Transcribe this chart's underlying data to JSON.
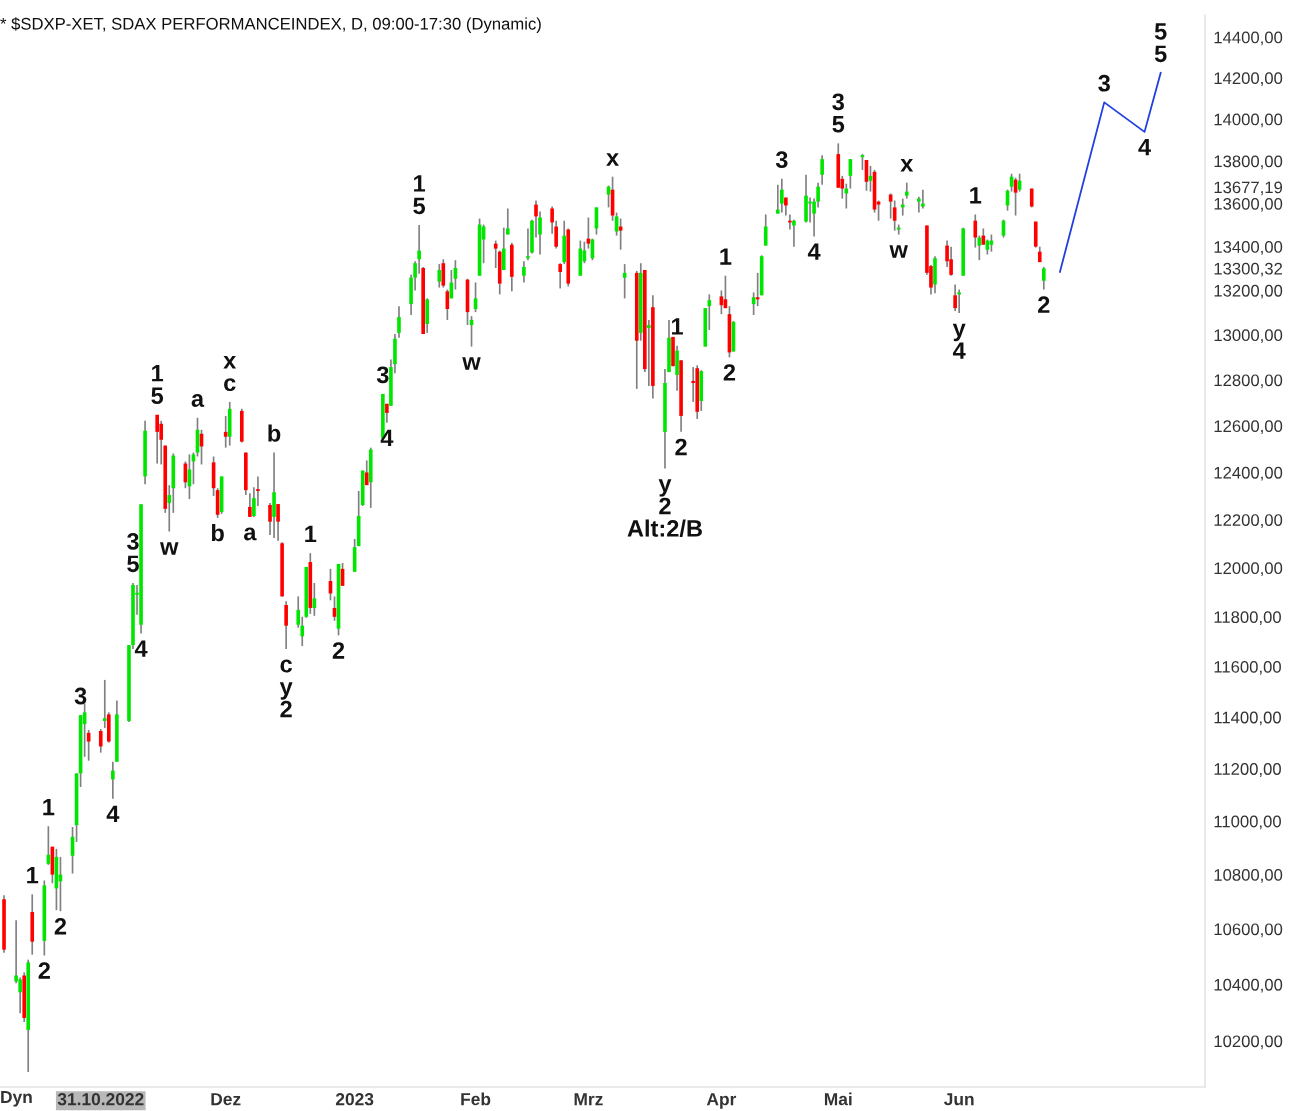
{
  "chart_data": {
    "type": "candlestick",
    "title": "* $SDXP-XET, SDAX PERFORMANCEINDEX, D, 09:00-17:30 (Dynamic)",
    "x": [
      "2022-10-07",
      "2022-10-10",
      "2022-10-11",
      "2022-10-12",
      "2022-10-13",
      "2022-10-14",
      "2022-10-17",
      "2022-10-18",
      "2022-10-19",
      "2022-10-20",
      "2022-10-21",
      "2022-10-24",
      "2022-10-25",
      "2022-10-26",
      "2022-10-27",
      "2022-10-28",
      "2022-10-31",
      "2022-11-01",
      "2022-11-02",
      "2022-11-03",
      "2022-11-04",
      "2022-11-07",
      "2022-11-08",
      "2022-11-09",
      "2022-11-10",
      "2022-11-11",
      "2022-11-14",
      "2022-11-15",
      "2022-11-16",
      "2022-11-17",
      "2022-11-18",
      "2022-11-21",
      "2022-11-22",
      "2022-11-23",
      "2022-11-24",
      "2022-11-25",
      "2022-11-28",
      "2022-11-29",
      "2022-11-30",
      "2022-12-01",
      "2022-12-02",
      "2022-12-05",
      "2022-12-06",
      "2022-12-07",
      "2022-12-08",
      "2022-12-09",
      "2022-12-12",
      "2022-12-13",
      "2022-12-14",
      "2022-12-15",
      "2022-12-16",
      "2022-12-19",
      "2022-12-20",
      "2022-12-21",
      "2022-12-22",
      "2022-12-23",
      "2022-12-27",
      "2022-12-28",
      "2022-12-29",
      "2022-12-30",
      "2023-01-02",
      "2023-01-03",
      "2023-01-04",
      "2023-01-05",
      "2023-01-06",
      "2023-01-09",
      "2023-01-10",
      "2023-01-11",
      "2023-01-12",
      "2023-01-13",
      "2023-01-16",
      "2023-01-17",
      "2023-01-18",
      "2023-01-19",
      "2023-01-20",
      "2023-01-23",
      "2023-01-24",
      "2023-01-25",
      "2023-01-26",
      "2023-01-27",
      "2023-01-30",
      "2023-01-31",
      "2023-02-01",
      "2023-02-02",
      "2023-02-03",
      "2023-02-06",
      "2023-02-07",
      "2023-02-08",
      "2023-02-09",
      "2023-02-10",
      "2023-02-13",
      "2023-02-14",
      "2023-02-15",
      "2023-02-16",
      "2023-02-17",
      "2023-02-20",
      "2023-02-21",
      "2023-02-22",
      "2023-02-23",
      "2023-02-24",
      "2023-02-27",
      "2023-02-28",
      "2023-03-01",
      "2023-03-02",
      "2023-03-03",
      "2023-03-06",
      "2023-03-07",
      "2023-03-08",
      "2023-03-09",
      "2023-03-10",
      "2023-03-13",
      "2023-03-14",
      "2023-03-15",
      "2023-03-16",
      "2023-03-17",
      "2023-03-20",
      "2023-03-21",
      "2023-03-22",
      "2023-03-23",
      "2023-03-24",
      "2023-03-27",
      "2023-03-28",
      "2023-03-29",
      "2023-03-30",
      "2023-03-31",
      "2023-04-03",
      "2023-04-04",
      "2023-04-05",
      "2023-04-06",
      "2023-04-11",
      "2023-04-12",
      "2023-04-13",
      "2023-04-14",
      "2023-04-17",
      "2023-04-18",
      "2023-04-19",
      "2023-04-20",
      "2023-04-21",
      "2023-04-24",
      "2023-04-25",
      "2023-04-26",
      "2023-04-27",
      "2023-04-28",
      "2023-05-02",
      "2023-05-03",
      "2023-05-04",
      "2023-05-05",
      "2023-05-08",
      "2023-05-09",
      "2023-05-10",
      "2023-05-11",
      "2023-05-12",
      "2023-05-15",
      "2023-05-16",
      "2023-05-17",
      "2023-05-18",
      "2023-05-19",
      "2023-05-22",
      "2023-05-23",
      "2023-05-24",
      "2023-05-25",
      "2023-05-26",
      "2023-05-29",
      "2023-05-30",
      "2023-05-31",
      "2023-06-01",
      "2023-06-02",
      "2023-06-05",
      "2023-06-06",
      "2023-06-07",
      "2023-06-08",
      "2023-06-09",
      "2023-06-12",
      "2023-06-13",
      "2023-06-14",
      "2023-06-15",
      "2023-06-16",
      "2023-06-19",
      "2023-06-20",
      "2023-06-21",
      "2023-06-22"
    ],
    "ohlc": [
      [
        10709,
        10724,
        10514,
        10525
      ],
      [
        10411,
        10632,
        10404,
        10432
      ],
      [
        10372,
        10425,
        10298,
        10418
      ],
      [
        10432,
        10443,
        10267,
        10281
      ],
      [
        10239,
        10489,
        10092,
        10479
      ],
      [
        10662,
        10727,
        10507,
        10554
      ],
      [
        10557,
        10778,
        10504,
        10760
      ],
      [
        10840,
        10981,
        10836,
        10874
      ],
      [
        10904,
        10904,
        10768,
        10800
      ],
      [
        10749,
        10896,
        10669,
        10866
      ],
      [
        10775,
        10866,
        10665,
        10800
      ],
      [
        10870,
        10978,
        10804,
        10941
      ],
      [
        10985,
        11182,
        10922,
        11182
      ],
      [
        11182,
        11408,
        11130,
        11408
      ],
      [
        11373,
        11454,
        11246,
        11419
      ],
      [
        11339,
        11350,
        11231,
        11305
      ],
      [
        11346,
        11354,
        11262,
        11286
      ],
      [
        11385,
        11547,
        11358,
        11396
      ],
      [
        11411,
        11419,
        11301,
        11305
      ],
      [
        11159,
        11227,
        11085,
        11193
      ],
      [
        11227,
        11466,
        11227,
        11411
      ],
      [
        11385,
        11686,
        11381,
        11686
      ],
      [
        11686,
        11938,
        11670,
        11930
      ],
      [
        11890,
        11930,
        11808,
        11898
      ],
      [
        11768,
        12265,
        11733,
        12265
      ],
      [
        12383,
        12622,
        12350,
        12579
      ],
      [
        12648,
        12648,
        12438,
        12574
      ],
      [
        12609,
        12622,
        12434,
        12540
      ],
      [
        12515,
        12515,
        12229,
        12246
      ],
      [
        12270,
        12346,
        12151,
        12304
      ],
      [
        12333,
        12481,
        12229,
        12472
      ],
      [
        12438,
        12447,
        12333,
        12358
      ],
      [
        12341,
        12477,
        12287,
        12413
      ],
      [
        12447,
        12485,
        12350,
        12477
      ],
      [
        12485,
        12635,
        12468,
        12583
      ],
      [
        12566,
        12583,
        12434,
        12511
      ],
      [
        12443,
        12468,
        12300,
        12333
      ],
      [
        12325,
        12333,
        12208,
        12221
      ],
      [
        12233,
        12383,
        12225,
        12383
      ],
      [
        12574,
        12643,
        12506,
        12553
      ],
      [
        12553,
        12704,
        12515,
        12674
      ],
      [
        12665,
        12674,
        12528,
        12532
      ],
      [
        12485,
        12485,
        12304,
        12325
      ],
      [
        12254,
        12312,
        12212,
        12212
      ],
      [
        12216,
        12337,
        12212,
        12291
      ],
      [
        12329,
        12383,
        12258,
        12321
      ],
      [
        12262,
        12271,
        12136,
        12192
      ],
      [
        12212,
        12485,
        12124,
        12316
      ],
      [
        12266,
        12266,
        12112,
        12192
      ],
      [
        12102,
        12106,
        11883,
        11883
      ],
      [
        11848,
        11863,
        11670,
        11764
      ],
      [
        11768,
        11883,
        11756,
        11828
      ],
      [
        11721,
        11800,
        11682,
        11764
      ],
      [
        11800,
        12004,
        11796,
        12004
      ],
      [
        12024,
        12061,
        11812,
        11836
      ],
      [
        11836,
        11938,
        11804,
        11875
      ],
      [
        11946,
        11996,
        11867,
        11895
      ],
      [
        11836,
        11883,
        11784,
        11800
      ],
      [
        11752,
        12016,
        11725,
        12016
      ],
      [
        11996,
        12020,
        11926,
        11926
      ],
      [
        11984,
        12120,
        11984,
        12086
      ],
      [
        12090,
        12321,
        12090,
        12216
      ],
      [
        12262,
        12408,
        12258,
        12408
      ],
      [
        12400,
        12451,
        12346,
        12346
      ],
      [
        12358,
        12506,
        12250,
        12498
      ],
      [
        12545,
        12739,
        12540,
        12739
      ],
      [
        12696,
        12696,
        12613,
        12656
      ],
      [
        12687,
        12891,
        12687,
        12857
      ],
      [
        12870,
        13004,
        12830,
        12983
      ],
      [
        13009,
        13129,
        12987,
        13080
      ],
      [
        13138,
        13271,
        13089,
        13258
      ],
      [
        13258,
        13333,
        13200,
        13324
      ],
      [
        13342,
        13500,
        13276,
        13382
      ],
      [
        13302,
        13307,
        13004,
        13004
      ],
      [
        13049,
        13164,
        13009,
        13160
      ],
      [
        13240,
        13320,
        13213,
        13293
      ],
      [
        13324,
        13342,
        13213,
        13222
      ],
      [
        13196,
        13204,
        13067,
        13116
      ],
      [
        13164,
        13293,
        13164,
        13236
      ],
      [
        13253,
        13338,
        13204,
        13302
      ],
      [
        13249,
        13253,
        13044,
        13102
      ],
      [
        13044,
        13084,
        12948,
        13067
      ],
      [
        13116,
        13236,
        13102,
        13164
      ],
      [
        13267,
        13530,
        13267,
        13502
      ],
      [
        13433,
        13502,
        13324,
        13493
      ],
      [
        13414,
        13428,
        13302,
        13391
      ],
      [
        13377,
        13382,
        13182,
        13231
      ],
      [
        13293,
        13488,
        13293,
        13391
      ],
      [
        13456,
        13577,
        13456,
        13484
      ],
      [
        13409,
        13418,
        13196,
        13262
      ],
      [
        13267,
        13333,
        13236,
        13307
      ],
      [
        13347,
        13484,
        13338,
        13356
      ],
      [
        13373,
        13525,
        13369,
        13520
      ],
      [
        13595,
        13614,
        13442,
        13540
      ],
      [
        13456,
        13563,
        13364,
        13535
      ],
      [
        13577,
        13586,
        13460,
        13512
      ],
      [
        13493,
        13520,
        13391,
        13400
      ],
      [
        13320,
        13324,
        13209,
        13284
      ],
      [
        13329,
        13520,
        13320,
        13451
      ],
      [
        13479,
        13484,
        13218,
        13231
      ],
      [
        13267,
        13428,
        13267,
        13391
      ],
      [
        13333,
        13423,
        13324,
        13382
      ],
      [
        13437,
        13535,
        13391,
        13414
      ],
      [
        13347,
        13437,
        13338,
        13433
      ],
      [
        13484,
        13582,
        13456,
        13582
      ],
      [
        13642,
        13684,
        13582,
        13679
      ],
      [
        13665,
        13726,
        13520,
        13544
      ],
      [
        13470,
        13558,
        13451,
        13540
      ],
      [
        13493,
        13530,
        13386,
        13474
      ],
      [
        13258,
        13320,
        13164,
        13280
      ],
      [
        13280,
        13289,
        12761,
        12974
      ],
      [
        13009,
        13324,
        12974,
        13280
      ],
      [
        13293,
        13293,
        12835,
        12848
      ],
      [
        13031,
        13067,
        12774,
        13044
      ],
      [
        13124,
        13178,
        12719,
        12774
      ],
      [
        12574,
        12848,
        12417,
        12787
      ],
      [
        12835,
        13067,
        12835,
        12987
      ],
      [
        12991,
        12991,
        12861,
        12861
      ],
      [
        12822,
        12952,
        12753,
        12930
      ],
      [
        12887,
        12887,
        12574,
        12643
      ],
      [
        12796,
        12857,
        12704,
        12787
      ],
      [
        12852,
        12865,
        12630,
        12661
      ],
      [
        12708,
        12843,
        12665,
        12839
      ],
      [
        12948,
        13120,
        12948,
        13120
      ],
      [
        13129,
        13182,
        13022,
        13156
      ],
      [
        13173,
        13200,
        13093,
        13133
      ],
      [
        13160,
        13267,
        13120,
        13120
      ],
      [
        13093,
        13129,
        12900,
        12922
      ],
      [
        12926,
        13062,
        12926,
        13058
      ],
      [
        13138,
        13191,
        13089,
        13169
      ],
      [
        13169,
        13280,
        13129,
        13160
      ],
      [
        13178,
        13360,
        13178,
        13356
      ],
      [
        13405,
        13549,
        13405,
        13493
      ],
      [
        13553,
        13688,
        13553,
        13572
      ],
      [
        13600,
        13716,
        13558,
        13665
      ],
      [
        13628,
        13628,
        13544,
        13591
      ],
      [
        13520,
        13549,
        13479,
        13512
      ],
      [
        13498,
        13525,
        13400,
        13520
      ],
      [
        13516,
        13735,
        13512,
        13637
      ],
      [
        13600,
        13628,
        13512,
        13609
      ],
      [
        13553,
        13623,
        13447,
        13609
      ],
      [
        13609,
        13698,
        13582,
        13679
      ],
      [
        13735,
        13828,
        13688,
        13809
      ],
      [
        13833,
        13884,
        13674,
        13674
      ],
      [
        13716,
        13730,
        13623,
        13670
      ],
      [
        13647,
        13693,
        13577,
        13670
      ],
      [
        13730,
        13809,
        13670,
        13809
      ],
      [
        13818,
        13833,
        13758,
        13828
      ],
      [
        13805,
        13805,
        13660,
        13702
      ],
      [
        13707,
        13777,
        13656,
        13730
      ],
      [
        13749,
        13758,
        13558,
        13572
      ],
      [
        13609,
        13614,
        13520,
        13595
      ],
      [
        13642,
        13647,
        13530,
        13609
      ],
      [
        13582,
        13614,
        13474,
        13520
      ],
      [
        13479,
        13502,
        13456,
        13488
      ],
      [
        13582,
        13623,
        13544,
        13595
      ],
      [
        13637,
        13698,
        13623,
        13656
      ],
      [
        13609,
        13632,
        13558,
        13623
      ],
      [
        13586,
        13665,
        13577,
        13600
      ],
      [
        13498,
        13498,
        13271,
        13280
      ],
      [
        13311,
        13316,
        13182,
        13213
      ],
      [
        13227,
        13356,
        13187,
        13347
      ],
      [
        13405,
        13428,
        13307,
        13333
      ],
      [
        13342,
        13400,
        13267,
        13271
      ],
      [
        13178,
        13227,
        13107,
        13120
      ],
      [
        13182,
        13204,
        13098,
        13191
      ],
      [
        13267,
        13488,
        13267,
        13484
      ],
      [
        13520,
        13549,
        13396,
        13442
      ],
      [
        13405,
        13451,
        13338,
        13442
      ],
      [
        13451,
        13484,
        13409,
        13409
      ],
      [
        13386,
        13433,
        13364,
        13428
      ],
      [
        13409,
        13456,
        13377,
        13428
      ],
      [
        13451,
        13525,
        13442,
        13520
      ],
      [
        13591,
        13665,
        13567,
        13660
      ],
      [
        13679,
        13740,
        13656,
        13726
      ],
      [
        13712,
        13721,
        13544,
        13651
      ],
      [
        13665,
        13740,
        13656,
        13707
      ],
      [
        13670,
        13670,
        13582,
        13586
      ],
      [
        13516,
        13516,
        13396,
        13400
      ],
      [
        13377,
        13400,
        13329,
        13329
      ],
      [
        13244,
        13307,
        13204,
        13300.32
      ]
    ],
    "colors": [
      "#ff0000",
      "#00e600",
      "#00e600",
      "#ff0000",
      "#00e600",
      "#ff0000",
      "#00e600",
      "#00e600",
      "#ff0000",
      "#00e600",
      "#00e600",
      "#00e600",
      "#00e600",
      "#00e600",
      "#00e600",
      "#ff0000",
      "#ff0000",
      "#00e600",
      "#ff0000",
      "#00e600",
      "#00e600",
      "#00e600",
      "#00e600",
      "#00e600",
      "#00e600",
      "#00e600",
      "#ff0000",
      "#ff0000",
      "#ff0000",
      "#00e600",
      "#00e600",
      "#ff0000",
      "#00e600",
      "#00e600",
      "#00e600",
      "#ff0000",
      "#ff0000",
      "#ff0000",
      "#00e600",
      "#ff0000",
      "#00e600",
      "#ff0000",
      "#ff0000",
      "#ff0000",
      "#00e600",
      "#ff0000",
      "#ff0000",
      "#00e600",
      "#ff0000",
      "#ff0000",
      "#ff0000",
      "#00e600",
      "#00e600",
      "#00e600",
      "#ff0000",
      "#00e600",
      "#ff0000",
      "#ff0000",
      "#00e600",
      "#ff0000",
      "#00e600",
      "#00e600",
      "#00e600",
      "#ff0000",
      "#00e600",
      "#00e600",
      "#ff0000",
      "#00e600",
      "#00e600",
      "#00e600",
      "#00e600",
      "#00e600",
      "#00e600",
      "#ff0000",
      "#00e600",
      "#00e600",
      "#ff0000",
      "#ff0000",
      "#00e600",
      "#00e600",
      "#ff0000",
      "#00e600",
      "#00e600",
      "#00e600",
      "#00e600",
      "#ff0000",
      "#ff0000",
      "#00e600",
      "#00e600",
      "#ff0000",
      "#00e600",
      "#00e600",
      "#00e600",
      "#ff0000",
      "#00e600",
      "#ff0000",
      "#ff0000",
      "#ff0000",
      "#00e600",
      "#ff0000",
      "#00e600",
      "#00e600",
      "#ff0000",
      "#00e600",
      "#00e600",
      "#00e600",
      "#ff0000",
      "#00e600",
      "#ff0000",
      "#00e600",
      "#ff0000",
      "#00e600",
      "#ff0000",
      "#00e600",
      "#ff0000",
      "#00e600",
      "#00e600",
      "#ff0000",
      "#00e600",
      "#ff0000",
      "#ff0000",
      "#ff0000",
      "#00e600",
      "#00e600",
      "#00e600",
      "#ff0000",
      "#ff0000",
      "#ff0000",
      "#00e600",
      "#00e600",
      "#ff0000",
      "#00e600",
      "#00e600",
      "#00e600",
      "#00e600",
      "#ff0000",
      "#ff0000",
      "#00e600",
      "#00e600",
      "#00e600",
      "#00e600",
      "#00e600",
      "#00e600",
      "#ff0000",
      "#ff0000",
      "#00e600",
      "#00e600",
      "#00e600",
      "#ff0000",
      "#00e600",
      "#ff0000",
      "#ff0000",
      "#ff0000",
      "#ff0000",
      "#00e600",
      "#00e600",
      "#00e600",
      "#00e600",
      "#00e600",
      "#ff0000",
      "#ff0000",
      "#00e600",
      "#ff0000",
      "#ff0000",
      "#ff0000",
      "#00e600",
      "#00e600",
      "#ff0000",
      "#00e600",
      "#ff0000",
      "#00e600",
      "#00e600",
      "#00e600",
      "#00e600",
      "#00e600",
      "#ff0000",
      "#00e600",
      "#ff0000",
      "#ff0000",
      "#ff0000",
      "#00e600"
    ],
    "series": [
      {
        "type": "line",
        "color": "#1f3fe0",
        "x": [
          "2023-06-26",
          "2023-07-07",
          "2023-07-17",
          "2023-07-21"
        ],
        "values": [
          13284,
          14081,
          13939,
          14224
        ]
      }
    ],
    "log": true,
    "xlim": [
      "2022-10-06",
      "2023-08-01"
    ],
    "xticks": [
      {
        "value": "2022-10-31",
        "label": "31.10.2022"
      },
      {
        "value": "2022-12-01",
        "label": "Dez"
      },
      {
        "value": "2023-01-02",
        "label": "2023"
      },
      {
        "value": "2023-02-01",
        "label": "Feb"
      },
      {
        "value": "2023-03-01",
        "label": "Mrz"
      },
      {
        "value": "2023-04-03",
        "label": "Apr"
      },
      {
        "value": "2023-05-02",
        "label": "Mai"
      },
      {
        "value": "2023-06-01",
        "label": "Jun"
      }
    ],
    "ylim": [
      10040,
      14510
    ],
    "yticks": [
      {
        "value": 10200,
        "label": "10200,00"
      },
      {
        "value": 10400,
        "label": "10400,00"
      },
      {
        "value": 10600,
        "label": "10600,00"
      },
      {
        "value": 10800,
        "label": "10800,00"
      },
      {
        "value": 11000,
        "label": "11000,00"
      },
      {
        "value": 11200,
        "label": "11200,00"
      },
      {
        "value": 11400,
        "label": "11400,00"
      },
      {
        "value": 11600,
        "label": "11600,00"
      },
      {
        "value": 11800,
        "label": "11800,00"
      },
      {
        "value": 12000,
        "label": "12000,00"
      },
      {
        "value": 12200,
        "label": "12200,00"
      },
      {
        "value": 12400,
        "label": "12400,00"
      },
      {
        "value": 12600,
        "label": "12600,00"
      },
      {
        "value": 12800,
        "label": "12800,00"
      },
      {
        "value": 13000,
        "label": "13000,00"
      },
      {
        "value": 13200,
        "label": "13200,00"
      },
      {
        "value": 13400,
        "label": "13400,00"
      },
      {
        "value": 13600,
        "label": "13600,00"
      },
      {
        "value": 13800,
        "label": "13800,00"
      },
      {
        "value": 14000,
        "label": "14000,00"
      },
      {
        "value": 14200,
        "label": "14200,00"
      },
      {
        "value": 14400,
        "label": "14400,00"
      },
      {
        "value": 13677.19,
        "label": "13677,19"
      },
      {
        "value": 13300.32,
        "label": "13300,32"
      }
    ],
    "grid": false,
    "annotations": [
      "Dyn",
      {
        "text": "5",
        "x": "2022-11-14",
        "y": 12648
      },
      {
        "text": "1",
        "x": "2022-11-14",
        "y": 12648
      },
      {
        "text": "5",
        "x": "2022-11-08",
        "y": 11938
      },
      {
        "text": "3",
        "x": "2022-11-08",
        "y": 11938
      },
      {
        "text": "4",
        "x": "2022-11-10",
        "y": 11733
      },
      {
        "text": "3",
        "x": "2022-10-26",
        "y": 11408
      },
      {
        "text": "4",
        "x": "2022-11-03",
        "y": 11085
      },
      {
        "text": "1",
        "x": "2022-10-18",
        "y": 10981
      },
      {
        "text": "1",
        "x": "2022-10-14",
        "y": 10727
      },
      {
        "text": "2",
        "x": "2022-10-21",
        "y": 10665
      },
      {
        "text": "2",
        "x": "2022-10-17",
        "y": 10504
      },
      {
        "text": "w",
        "x": "2022-11-17",
        "y": 12151
      },
      {
        "text": "a",
        "x": "2022-11-24",
        "y": 12635
      },
      {
        "text": "b",
        "x": "2022-11-29",
        "y": 12208
      },
      {
        "text": "c",
        "x": "2022-12-02",
        "y": 12704
      },
      {
        "text": "x",
        "x": "2022-12-02",
        "y": 12704
      },
      {
        "text": "a",
        "x": "2022-12-07",
        "y": 12212
      },
      {
        "text": "b",
        "x": "2022-12-13",
        "y": 12485
      },
      {
        "text": "1",
        "x": "2022-12-22",
        "y": 12061
      },
      {
        "text": "2",
        "x": "2022-12-29",
        "y": 11725
      },
      {
        "text": "c",
        "x": "2022-12-16",
        "y": 11670
      },
      {
        "text": "y",
        "x": "2022-12-16",
        "y": 11670
      },
      {
        "text": "2",
        "x": "2022-12-16",
        "y": 11670
      },
      {
        "text": "3",
        "x": "2023-01-09",
        "y": 12739
      },
      {
        "text": "4",
        "x": "2023-01-10",
        "y": 12613
      },
      {
        "text": "5",
        "x": "2023-01-18",
        "y": 13500
      },
      {
        "text": "1",
        "x": "2023-01-18",
        "y": 13500
      },
      {
        "text": "w",
        "x": "2023-01-31",
        "y": 12948
      },
      {
        "text": "x",
        "x": "2023-03-07",
        "y": 13726
      },
      {
        "text": "y",
        "x": "2023-03-20",
        "y": 12417
      },
      {
        "text": "2",
        "x": "2023-03-20",
        "y": 12417
      },
      {
        "text": "Alt:2/B",
        "x": "2023-03-20",
        "y": 12417
      },
      {
        "text": "1",
        "x": "2023-03-23",
        "y": 12952
      },
      {
        "text": "2",
        "x": "2023-03-24",
        "y": 12574
      },
      {
        "text": "1",
        "x": "2023-04-04",
        "y": 13267
      },
      {
        "text": "2",
        "x": "2023-04-05",
        "y": 12900
      },
      {
        "text": "3",
        "x": "2023-04-18",
        "y": 13716
      },
      {
        "text": "4",
        "x": "2023-04-26",
        "y": 13447
      },
      {
        "text": "5",
        "x": "2023-05-02",
        "y": 13884
      },
      {
        "text": "3",
        "x": "2023-05-02",
        "y": 13884
      },
      {
        "text": "x",
        "x": "2023-05-19",
        "y": 13698
      },
      {
        "text": "w",
        "x": "2023-05-17",
        "y": 13456
      },
      {
        "text": "1",
        "x": "2023-06-05",
        "y": 13549
      },
      {
        "text": "y",
        "x": "2023-06-01",
        "y": 13098
      },
      {
        "text": "4",
        "x": "2023-06-01",
        "y": 13098
      },
      {
        "text": "2",
        "x": "2023-06-22",
        "y": 13204
      },
      {
        "text": "3",
        "x": "2023-07-07",
        "y": 14081
      },
      {
        "text": "4",
        "x": "2023-07-17",
        "y": 13939
      },
      {
        "text": "5",
        "x": "2023-07-21",
        "y": 14224
      },
      {
        "text": "5",
        "x": "2023-07-21",
        "y": 14224
      }
    ]
  }
}
